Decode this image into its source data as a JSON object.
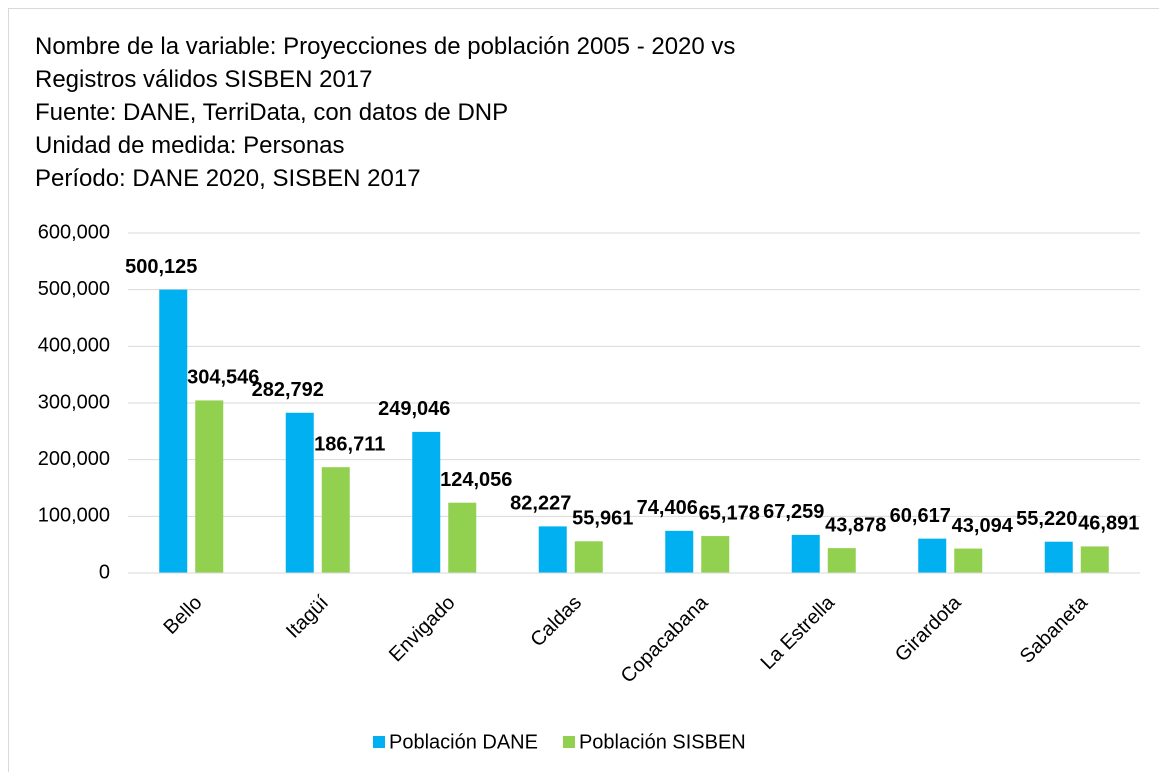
{
  "chart_data": {
    "type": "bar",
    "title": [
      "Nombre de la variable: Proyecciones de población 2005 - 2020 vs",
      "Registros válidos SISBEN 2017",
      "Fuente: DANE, TerriData, con datos de DNP",
      "Unidad de medida: Personas",
      "Período: DANE 2020, SISBEN 2017"
    ],
    "categories": [
      "Bello",
      "Itagüí",
      "Envigado",
      "Caldas",
      "Copacabana",
      "La Estrella",
      "Girardota",
      "Sabaneta"
    ],
    "series": [
      {
        "name": "Población DANE",
        "color": "#00b0f0",
        "values": [
          500125,
          282792,
          249046,
          82227,
          74406,
          67259,
          60617,
          55220
        ],
        "value_labels": [
          "500,125",
          "282,792",
          "249,046",
          "82,227",
          "74,406",
          "67,259",
          "60,617",
          "55,220"
        ]
      },
      {
        "name": "Población SISBEN",
        "color": "#92d050",
        "values": [
          304546,
          186711,
          124056,
          55961,
          65178,
          43878,
          43094,
          46891
        ],
        "value_labels": [
          "304,546",
          "186,711",
          "124,056",
          "55,961",
          "65,178",
          "43,878",
          "43,094",
          "46,891"
        ]
      }
    ],
    "ylim": [
      0,
      600000
    ],
    "yticks": [
      0,
      {
        "value": 100000,
        "label": "100,000"
      },
      {
        "value": 200000,
        "label": "200,000"
      },
      {
        "value": 300000,
        "label": "300,000"
      },
      {
        "value": 400000,
        "label": "400,000"
      },
      {
        "value": 500000,
        "label": "500,000"
      },
      {
        "value": 600000,
        "label": "600,000"
      }
    ],
    "grid": true,
    "legend": "bottom"
  }
}
